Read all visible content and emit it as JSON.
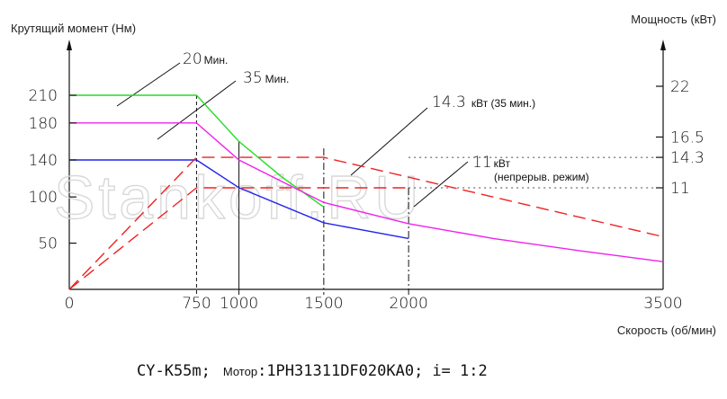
{
  "chart_data": {
    "type": "line",
    "left_axis_label": "Крутящий момент (Нм)",
    "right_axis_label": "Мощность (кВт)",
    "x_axis_label": "Скорость (об/мин)",
    "x_ticks": [
      "0",
      "750",
      "1000",
      "1500",
      "2000",
      "3500"
    ],
    "y_left_ticks": [
      "210",
      "180",
      "140",
      "100",
      "50"
    ],
    "y_right_ticks": [
      "22",
      "16.5",
      "14.3",
      "11"
    ],
    "xlim": [
      0,
      3500
    ],
    "y_left_lim": [
      0,
      260
    ],
    "y_right_lim": [
      0,
      26
    ],
    "torque_series": [
      {
        "color": "#22dd22",
        "x": [
          0,
          750,
          1000,
          1250,
          1500
        ],
        "y": [
          210,
          210,
          160,
          122,
          89
        ]
      },
      {
        "color": "#ee22ee",
        "x": [
          0,
          750,
          1000,
          1500,
          2000,
          2500,
          3000,
          3500
        ],
        "y": [
          180,
          180,
          140,
          94,
          71,
          55,
          42,
          30
        ]
      },
      {
        "color": "#2222ee",
        "x": [
          0,
          750,
          1000,
          1500,
          2000
        ],
        "y": [
          140,
          140,
          110,
          72,
          55
        ]
      }
    ],
    "power_series": [
      {
        "color": "#ee2222",
        "dash": "long",
        "x": [
          0,
          750,
          1500,
          3500
        ],
        "y": [
          0,
          14.3,
          14.3,
          5.7
        ]
      },
      {
        "color": "#ee2222",
        "dash": "long",
        "x": [
          0,
          750,
          2000
        ],
        "y": [
          0,
          11,
          11
        ]
      }
    ],
    "annotations": [
      {
        "value": "20",
        "unit": "Мин."
      },
      {
        "value": "35",
        "unit": "Мин."
      },
      {
        "value": "14.3",
        "unit": "кВт (35 мин.)"
      },
      {
        "value": "11",
        "unit": "кВт",
        "note": "(непрерыв. режим)"
      }
    ],
    "grid": false,
    "legend": "none"
  },
  "watermark": "Stankoff.RU",
  "footer": {
    "model": "CY-K55m;",
    "motor_label": "Мотор",
    "motor_code": ":1PH31311DF020KA0;",
    "ratio": "i= 1:2"
  }
}
